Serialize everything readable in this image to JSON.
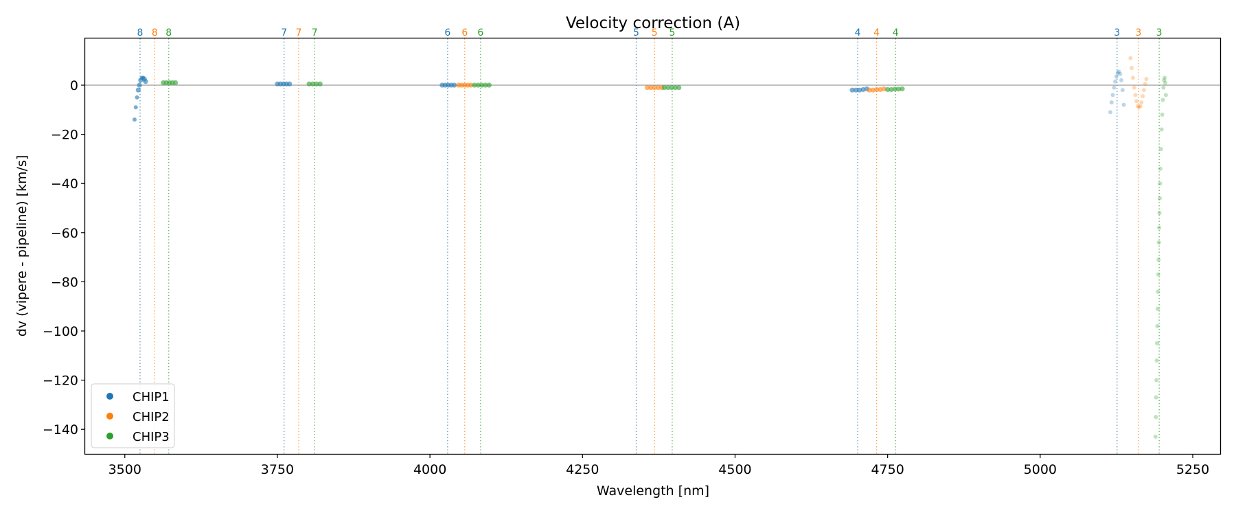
{
  "chart_data": {
    "type": "scatter",
    "title": "Velocity correction (A)",
    "xlabel": "Wavelength [nm]",
    "ylabel": "dv (vipere - pipeline) [km/s]",
    "xlim": [
      3435,
      5295
    ],
    "ylim": [
      -150,
      19
    ],
    "xticks": [
      3500,
      3750,
      4000,
      4250,
      4500,
      4750,
      5000,
      5250
    ],
    "yticks": [
      0,
      -20,
      -40,
      -60,
      -80,
      -100,
      -120,
      -140
    ],
    "zero_line": true,
    "grid": false,
    "legend": {
      "placement": "lower-left",
      "entries": [
        "CHIP1",
        "CHIP2",
        "CHIP3"
      ]
    },
    "colors": {
      "CHIP1": "#1f77b4",
      "CHIP2": "#ff7f0e",
      "CHIP3": "#2ca02c",
      "zero_line": "#808080"
    },
    "order_markers": [
      {
        "series": "CHIP1",
        "order": "8",
        "x": 3525
      },
      {
        "series": "CHIP2",
        "order": "8",
        "x": 3549
      },
      {
        "series": "CHIP3",
        "order": "8",
        "x": 3572
      },
      {
        "series": "CHIP1",
        "order": "7",
        "x": 3761
      },
      {
        "series": "CHIP2",
        "order": "7",
        "x": 3785
      },
      {
        "series": "CHIP3",
        "order": "7",
        "x": 3811
      },
      {
        "series": "CHIP1",
        "order": "6",
        "x": 4029
      },
      {
        "series": "CHIP2",
        "order": "6",
        "x": 4057
      },
      {
        "series": "CHIP3",
        "order": "6",
        "x": 4083
      },
      {
        "series": "CHIP1",
        "order": "5",
        "x": 4338
      },
      {
        "series": "CHIP2",
        "order": "5",
        "x": 4368
      },
      {
        "series": "CHIP3",
        "order": "5",
        "x": 4397
      },
      {
        "series": "CHIP1",
        "order": "4",
        "x": 4701
      },
      {
        "series": "CHIP2",
        "order": "4",
        "x": 4732
      },
      {
        "series": "CHIP3",
        "order": "4",
        "x": 4763
      },
      {
        "series": "CHIP1",
        "order": "3",
        "x": 5126
      },
      {
        "series": "CHIP2",
        "order": "3",
        "x": 5161
      },
      {
        "series": "CHIP3",
        "order": "3",
        "x": 5195
      }
    ],
    "series": [
      {
        "name": "CHIP1",
        "segments": [
          {
            "order": "8",
            "x": [
              3516,
              3518,
              3520,
              3522,
              3524,
              3526,
              3528,
              3530,
              3532,
              3534
            ],
            "y": [
              -14,
              -9,
              -5,
              -2,
              0,
              2,
              3,
              3,
              2.5,
              1.5
            ]
          },
          {
            "order": "7",
            "x": [
              3750,
              3755,
              3760,
              3765,
              3770
            ],
            "y": [
              0.5,
              0.5,
              0.5,
              0.5,
              0.5
            ]
          },
          {
            "order": "6",
            "x": [
              4020,
              4025,
              4030,
              4035,
              4040
            ],
            "y": [
              0,
              0,
              0,
              0,
              0
            ]
          },
          {
            "order": "4",
            "x": [
              4692,
              4698,
              4704,
              4710,
              4716
            ],
            "y": [
              -2,
              -2,
              -2,
              -1.8,
              -1.5
            ]
          },
          {
            "order": "3",
            "x": [
              5115,
              5117,
              5119,
              5121,
              5123,
              5125,
              5127,
              5129,
              5131,
              5133,
              5135,
              5137
            ],
            "y": [
              -11,
              -7,
              -4,
              -1,
              1.5,
              3.5,
              5,
              5.5,
              4.5,
              2,
              -2,
              -8
            ]
          }
        ]
      },
      {
        "name": "CHIP2",
        "segments": [
          {
            "order": "6",
            "x": [
              4047,
              4052,
              4057,
              4062,
              4067
            ],
            "y": [
              0,
              0,
              0,
              0,
              0
            ]
          },
          {
            "order": "5",
            "x": [
              4356,
              4362,
              4368,
              4374,
              4380
            ],
            "y": [
              -1,
              -1,
              -1,
              -1,
              -1
            ]
          },
          {
            "order": "4",
            "x": [
              4720,
              4726,
              4732,
              4738,
              4744
            ],
            "y": [
              -2,
              -2,
              -1.8,
              -1.8,
              -1.5
            ]
          },
          {
            "order": "3",
            "x": [
              5148,
              5150,
              5152,
              5154,
              5156,
              5158,
              5160,
              5162,
              5164,
              5166,
              5168,
              5170,
              5172,
              5174
            ],
            "y": [
              11,
              7,
              3,
              -1,
              -4,
              -6.5,
              -8.5,
              -9,
              -8.5,
              -7,
              -4.5,
              -2,
              0.5,
              2.5
            ]
          }
        ]
      },
      {
        "name": "CHIP3",
        "segments": [
          {
            "order": "8",
            "x": [
              3563,
              3568,
              3573,
              3578,
              3583
            ],
            "y": [
              1,
              1,
              1,
              1,
              1
            ]
          },
          {
            "order": "7",
            "x": [
              3802,
              3808,
              3814,
              3820
            ],
            "y": [
              0.5,
              0.5,
              0.5,
              0.5
            ]
          },
          {
            "order": "6",
            "x": [
              4073,
              4079,
              4085,
              4091,
              4097
            ],
            "y": [
              0,
              0,
              0,
              0,
              0
            ]
          },
          {
            "order": "5",
            "x": [
              4384,
              4390,
              4396,
              4402,
              4408
            ],
            "y": [
              -1,
              -1,
              -1,
              -1,
              -1
            ]
          },
          {
            "order": "4",
            "x": [
              4750,
              4756,
              4762,
              4768,
              4774
            ],
            "y": [
              -1.8,
              -1.8,
              -1.6,
              -1.6,
              -1.5
            ]
          },
          {
            "order": "3",
            "x": [
              5189,
              5189.5,
              5190,
              5190.5,
              5191,
              5191.5,
              5192,
              5192.5,
              5193,
              5193.5,
              5194,
              5194.5,
              5195,
              5195.5,
              5196,
              5196.5,
              5197,
              5198,
              5199,
              5200,
              5201,
              5202,
              5203,
              5204,
              5205,
              5206
            ],
            "y": [
              -143,
              -135,
              -127,
              -120,
              -112,
              -105,
              -98,
              -91,
              -84,
              -77,
              -71,
              -64,
              -58,
              -52,
              -46,
              -40,
              -34,
              -26,
              -18,
              -12,
              -6,
              -1,
              2,
              3,
              1,
              -4
            ]
          }
        ]
      }
    ]
  }
}
